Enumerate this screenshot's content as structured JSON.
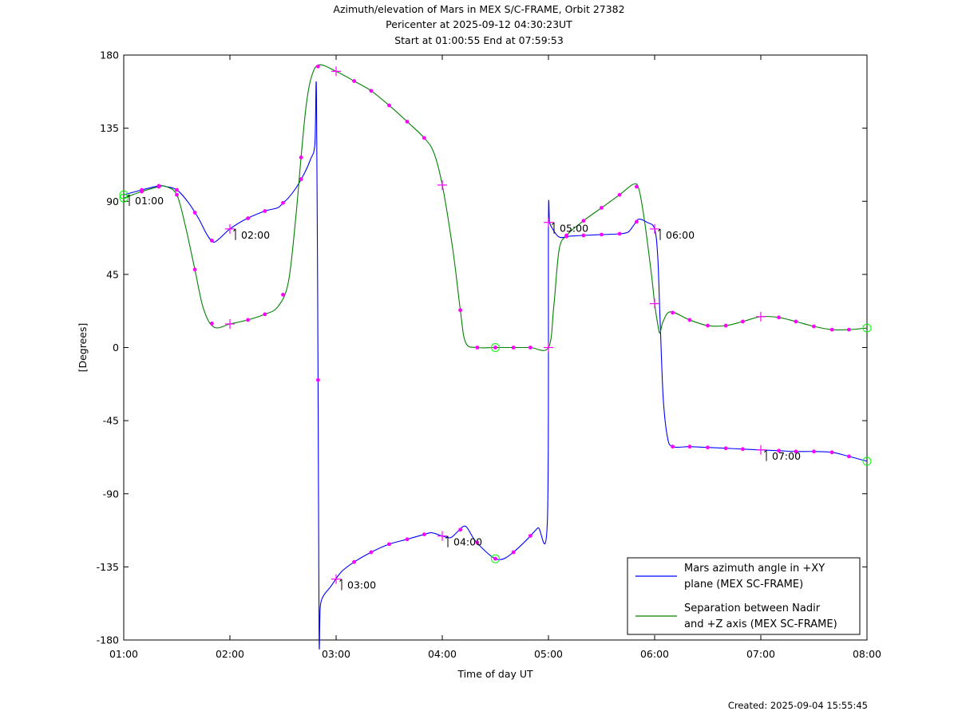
{
  "header": {
    "title": "Azimuth/elevation of Mars in MEX S/C-FRAME,  Orbit 27382",
    "subtitle1": "Pericenter at 2025-09-12 04:30:23UT",
    "subtitle2": "Start at 01:00:55 End at 07:59:53"
  },
  "footer": {
    "created": "Created: 2025-09-04 15:55:45"
  },
  "colors": {
    "azimuth": "#0000ff",
    "separation": "#008000",
    "markers": "#ff00ff",
    "pericenter_circle": "#00ff00"
  },
  "chart_data": {
    "type": "line",
    "xlabel": "Time of day UT",
    "ylabel": "[Degrees]",
    "xlim": [
      1.0,
      8.0
    ],
    "ylim": [
      -180,
      180
    ],
    "x_ticks": [
      1,
      2,
      3,
      4,
      5,
      6,
      7,
      8
    ],
    "x_tick_labels": [
      "01:00",
      "02:00",
      "03:00",
      "04:00",
      "05:00",
      "06:00",
      "07:00",
      "08:00"
    ],
    "y_ticks": [
      180,
      135,
      90,
      45,
      0,
      -45,
      -90,
      -135,
      -180
    ],
    "y_tick_labels": [
      "180",
      "135",
      "90",
      "45",
      "0",
      "-45",
      "-90",
      "-135",
      "-180"
    ],
    "grid": false,
    "legend_position": "bottom-right",
    "series": [
      {
        "key": "azimuth",
        "name": "Mars azimuth angle in +XY plane (MEX SC-FRAME)",
        "legend_lines": [
          "Mars azimuth angle in +XY",
          "plane (MEX SC-FRAME)"
        ],
        "x": [
          1.0,
          1.17,
          1.33,
          1.4,
          1.5,
          1.6,
          1.7,
          1.78,
          1.84,
          1.9,
          2.0,
          2.15,
          2.33,
          2.45,
          2.5,
          2.55,
          2.62,
          2.7,
          2.76,
          2.8,
          2.815,
          2.83,
          2.84,
          2.85,
          2.88,
          2.95,
          3.05,
          3.17,
          3.33,
          3.5,
          3.67,
          3.83,
          3.9,
          4.0,
          4.08,
          4.15,
          4.22,
          4.3,
          4.4,
          4.5,
          4.58,
          4.67,
          4.8,
          4.9,
          4.99,
          5.0,
          5.01,
          5.03,
          5.1,
          5.2,
          5.33,
          5.5,
          5.67,
          5.75,
          5.8,
          5.85,
          5.93,
          6.0,
          6.03,
          6.05,
          6.08,
          6.12,
          6.17,
          6.33,
          6.5,
          6.67,
          6.83,
          7.0,
          7.17,
          7.33,
          7.5,
          7.67,
          7.83,
          8.0
        ],
        "y": [
          94,
          97,
          99.5,
          99,
          97,
          90,
          80,
          70,
          65,
          67,
          73,
          79,
          84,
          86,
          89,
          92,
          98,
          107,
          116,
          125,
          157,
          -20,
          -178,
          -160,
          -153,
          -147,
          -138,
          -132,
          -126,
          -121,
          -118,
          -115,
          -114,
          -116,
          -117,
          -113,
          -110,
          -118,
          -125,
          -130,
          -130,
          -126,
          -118,
          -111,
          -106,
          77,
          77,
          74,
          68,
          68.5,
          69,
          69.5,
          70,
          71,
          75,
          79,
          77,
          73,
          55,
          20,
          -30,
          -55,
          -61,
          -61,
          -61.5,
          -62,
          -62.5,
          -63,
          -63.5,
          -64,
          -64,
          -64.5,
          -67,
          -70
        ]
      },
      {
        "key": "separation",
        "name": "Separation between Nadir and +Z axis (MEX SC-FRAME)",
        "legend_lines": [
          "Separation between Nadir",
          "and +Z axis (MEX SC-FRAME)"
        ],
        "x": [
          1.0,
          1.17,
          1.33,
          1.4,
          1.5,
          1.58,
          1.67,
          1.75,
          1.85,
          2.0,
          2.17,
          2.33,
          2.45,
          2.55,
          2.62,
          2.67,
          2.72,
          2.77,
          2.84,
          3.0,
          3.17,
          3.33,
          3.5,
          3.67,
          3.83,
          3.92,
          4.0,
          4.1,
          4.17,
          4.22,
          4.33,
          4.5,
          4.67,
          4.83,
          5.0,
          5.05,
          5.1,
          5.17,
          5.33,
          5.5,
          5.67,
          5.8,
          5.85,
          5.9,
          5.97,
          6.0,
          6.03,
          6.05,
          6.08,
          6.15,
          6.33,
          6.5,
          6.67,
          6.83,
          7.0,
          7.17,
          7.33,
          7.5,
          7.67,
          7.83,
          8.0
        ],
        "y": [
          92,
          96,
          99,
          99,
          94,
          75,
          48,
          24,
          12.5,
          14.5,
          17,
          20.5,
          25,
          40,
          80,
          117,
          150,
          167,
          174,
          170,
          164,
          158,
          149,
          139,
          129,
          120,
          100,
          60,
          23,
          3,
          0,
          0,
          0,
          0,
          0,
          25,
          60,
          69,
          78,
          86,
          94,
          100.5,
          98,
          80,
          45,
          27,
          14,
          9,
          16,
          22,
          17,
          13.5,
          13.5,
          16,
          19,
          18.5,
          16,
          13,
          11,
          11,
          12
        ]
      }
    ],
    "markers": {
      "minor_x": [
        1.17,
        1.33,
        1.5,
        1.67,
        1.83,
        2.17,
        2.33,
        2.5,
        2.67,
        2.83,
        3.17,
        3.33,
        3.5,
        3.67,
        3.83,
        4.17,
        4.33,
        4.5,
        4.67,
        4.83,
        5.17,
        5.33,
        5.5,
        5.67,
        5.83,
        6.17,
        6.33,
        6.5,
        6.67,
        6.83,
        7.17,
        7.33,
        7.5,
        7.67,
        7.83
      ],
      "hour_x": [
        2,
        3,
        4,
        5,
        6,
        7
      ],
      "circle_x": [
        1.0,
        4.5,
        8.0
      ]
    },
    "hour_annotations": [
      {
        "x": 1.0,
        "label": "01:00"
      },
      {
        "x": 2.0,
        "label": "02:00"
      },
      {
        "x": 3.0,
        "label": "03:00"
      },
      {
        "x": 4.0,
        "label": "04:00"
      },
      {
        "x": 5.0,
        "label": "05:00"
      },
      {
        "x": 6.0,
        "label": "06:00"
      },
      {
        "x": 7.0,
        "label": "07:00"
      }
    ]
  }
}
